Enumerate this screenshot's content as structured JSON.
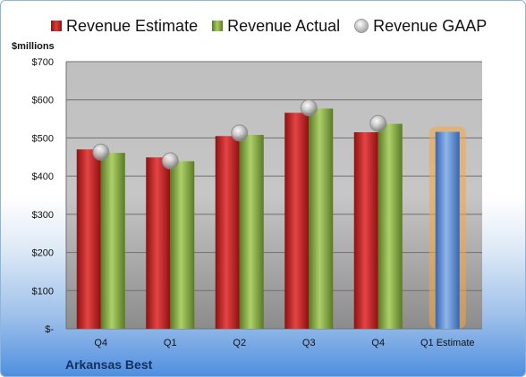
{
  "chart_data": {
    "type": "bar",
    "unit_label": "$millions",
    "categories": [
      "Q4",
      "Q1",
      "Q2",
      "Q3",
      "Q4",
      "Q1 Estimate"
    ],
    "series": [
      {
        "name": "Revenue Estimate",
        "type": "bar",
        "color": "#d42a2a",
        "values": [
          470,
          449,
          505,
          566,
          515,
          null
        ]
      },
      {
        "name": "Revenue Actual",
        "type": "bar",
        "color": "#8cb04a",
        "values": [
          461,
          439,
          508,
          577,
          537,
          null
        ]
      },
      {
        "name": "Revenue GAAP",
        "type": "marker",
        "color": "#b0b0b0",
        "values": [
          463,
          440,
          513,
          579,
          538,
          null
        ]
      },
      {
        "name": "Q1 Estimate",
        "type": "bar",
        "color": "#5b8fd6",
        "highlight": "#f5a53f",
        "values": [
          null,
          null,
          null,
          null,
          null,
          516
        ]
      }
    ],
    "ylim": [
      0,
      700
    ],
    "yticks": [
      0,
      100,
      200,
      300,
      400,
      500,
      600,
      700
    ],
    "ytick_labels": [
      "$-",
      "$100",
      "$200",
      "$300",
      "$400",
      "$500",
      "$600",
      "$700"
    ],
    "grid": true,
    "legend_position": "top"
  },
  "footer": {
    "company": "Arkansas Best"
  }
}
